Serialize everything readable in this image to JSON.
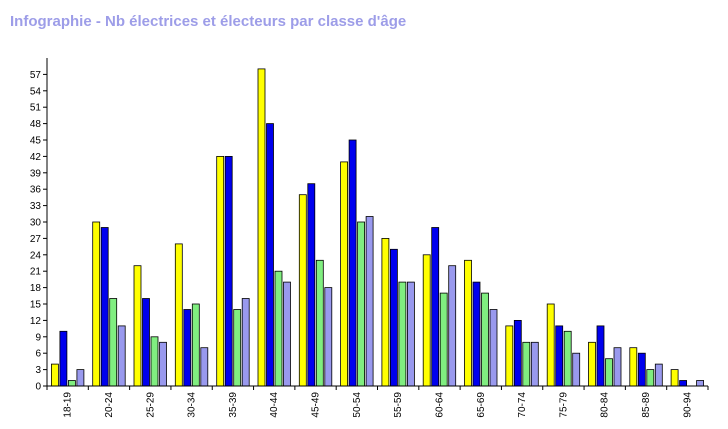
{
  "chart_data": {
    "type": "bar",
    "title": "Infographie - Nb électrices et électeurs par classe d'âge",
    "xlabel": "",
    "ylabel": "",
    "ylim": [
      0,
      60
    ],
    "yticks": [
      0,
      3,
      6,
      9,
      12,
      15,
      18,
      21,
      24,
      27,
      30,
      33,
      36,
      39,
      42,
      45,
      48,
      51,
      54,
      57
    ],
    "grid": false,
    "legend": "none",
    "categories": [
      "18-19",
      "20-24",
      "25-29",
      "30-34",
      "35-39",
      "40-44",
      "45-49",
      "50-54",
      "55-59",
      "60-64",
      "65-69",
      "70-74",
      "75-79",
      "80-84",
      "85-89",
      "90-94"
    ],
    "series": [
      {
        "color": "#ffff00",
        "values": [
          4,
          30,
          22,
          26,
          42,
          58,
          35,
          41,
          27,
          24,
          23,
          11,
          15,
          8,
          7,
          3
        ]
      },
      {
        "color": "#0000ee",
        "values": [
          10,
          29,
          16,
          14,
          42,
          48,
          37,
          45,
          25,
          29,
          19,
          12,
          11,
          11,
          6,
          1
        ]
      },
      {
        "color": "#80ee80",
        "values": [
          1,
          16,
          9,
          15,
          14,
          21,
          23,
          30,
          19,
          17,
          17,
          8,
          10,
          5,
          3,
          0
        ]
      },
      {
        "color": "#9999ee",
        "values": [
          3,
          11,
          8,
          7,
          16,
          19,
          18,
          31,
          19,
          22,
          14,
          8,
          6,
          7,
          4,
          1
        ]
      }
    ]
  }
}
